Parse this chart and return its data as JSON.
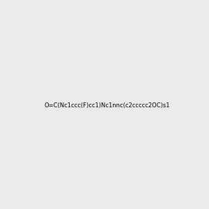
{
  "smiles": "O=C(Nc1ccc(F)cc1)Nc1nnc(c2ccccc2OC)s1",
  "img_size": [
    300,
    300
  ],
  "background": "#ebebeb",
  "atom_colors": {
    "F": [
      1.0,
      0.0,
      1.0
    ],
    "N": [
      0.0,
      0.0,
      1.0
    ],
    "O": [
      1.0,
      0.0,
      0.0
    ],
    "S": [
      0.8,
      0.8,
      0.0
    ]
  }
}
